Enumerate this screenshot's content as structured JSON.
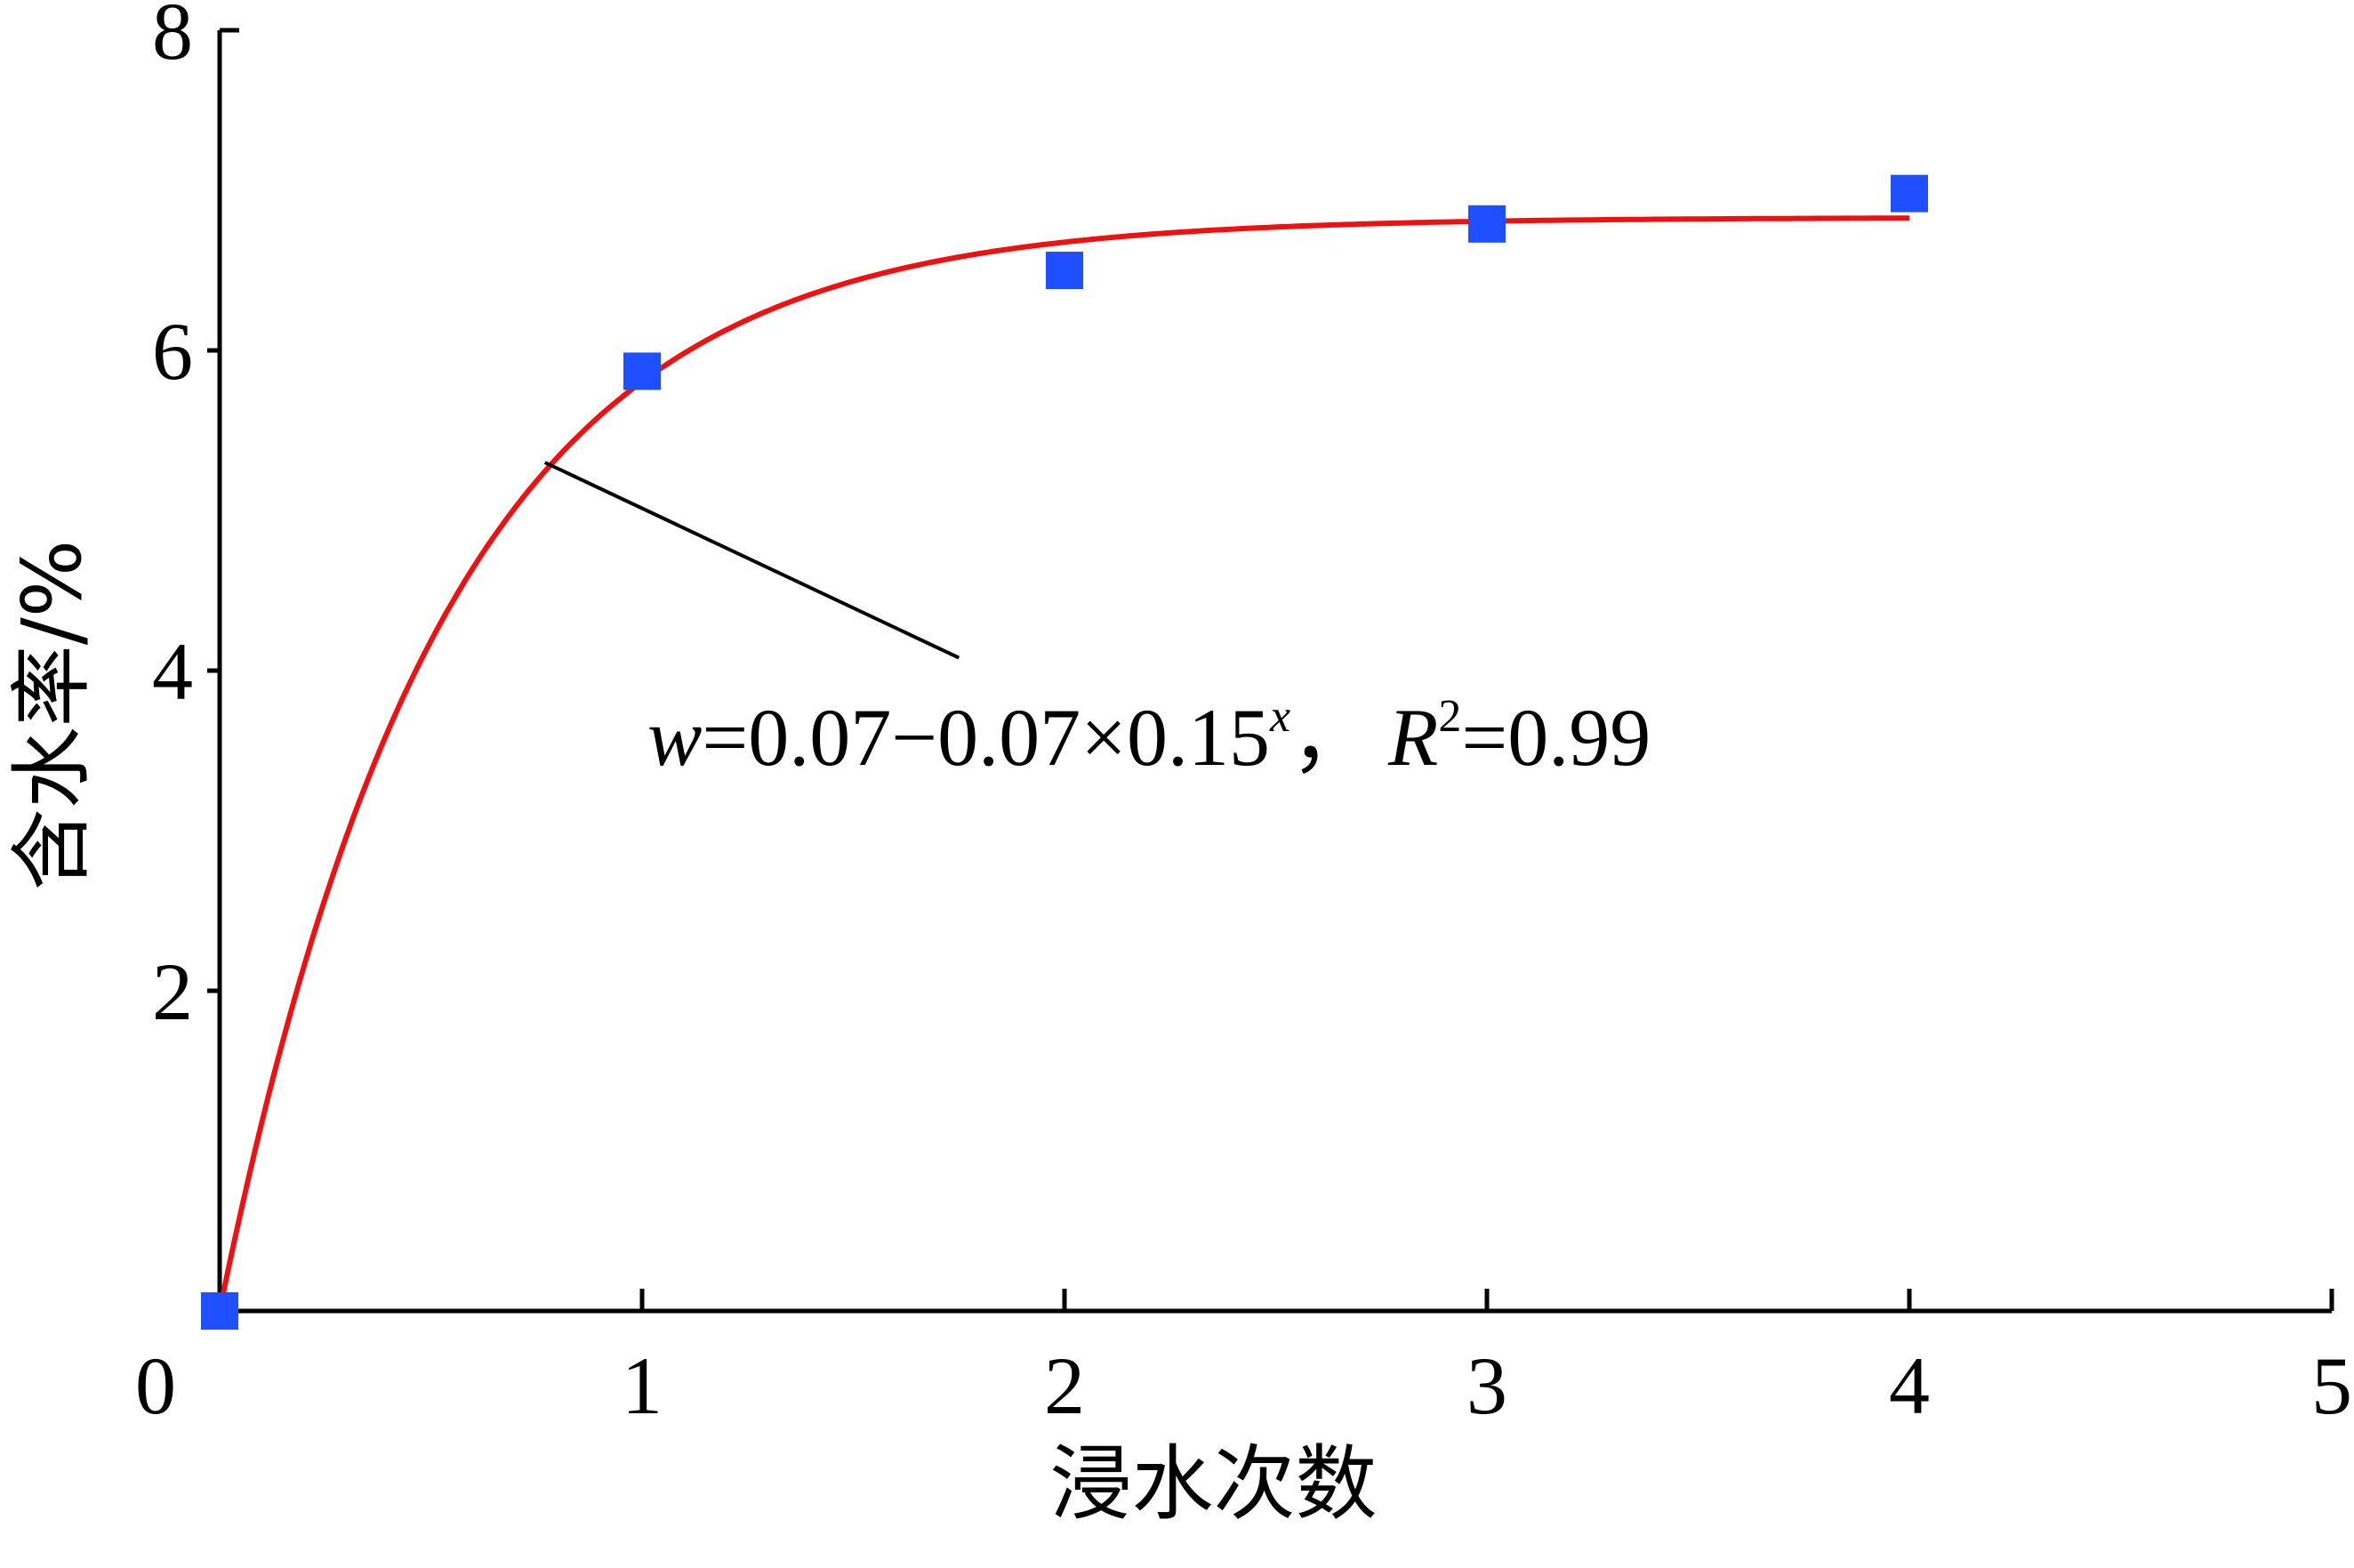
{
  "chart_data": {
    "type": "scatter",
    "xlabel": "浸水次数",
    "ylabel": "含水率/%",
    "xlim": [
      0,
      5
    ],
    "ylim": [
      0,
      8
    ],
    "x_ticks": [
      "1",
      "2",
      "3",
      "4",
      "5"
    ],
    "y_ticks": [
      "2",
      "4",
      "6",
      "8"
    ],
    "origin_label": "0",
    "grid": false,
    "series": [
      {
        "kind": "points",
        "marker": "square",
        "color": "#1f4fff",
        "x": [
          0,
          1,
          2,
          3,
          4
        ],
        "y": [
          0.0,
          5.87,
          6.5,
          6.79,
          6.98
        ]
      },
      {
        "kind": "fit-curve",
        "color": "#ee1111",
        "formula": "w=7*(1-0.15^x)",
        "x_range": [
          0,
          4
        ]
      }
    ],
    "annotation": {
      "w": "w",
      "eq1": "=0.07−0.07×0.15",
      "sup_x": "x",
      "sep": "，",
      "R": "R",
      "sup_2": "2",
      "eq2": "=0.99",
      "pointer_from": [
        0.77,
        5.3
      ],
      "pointer_to": [
        1.75,
        4.08
      ]
    }
  }
}
